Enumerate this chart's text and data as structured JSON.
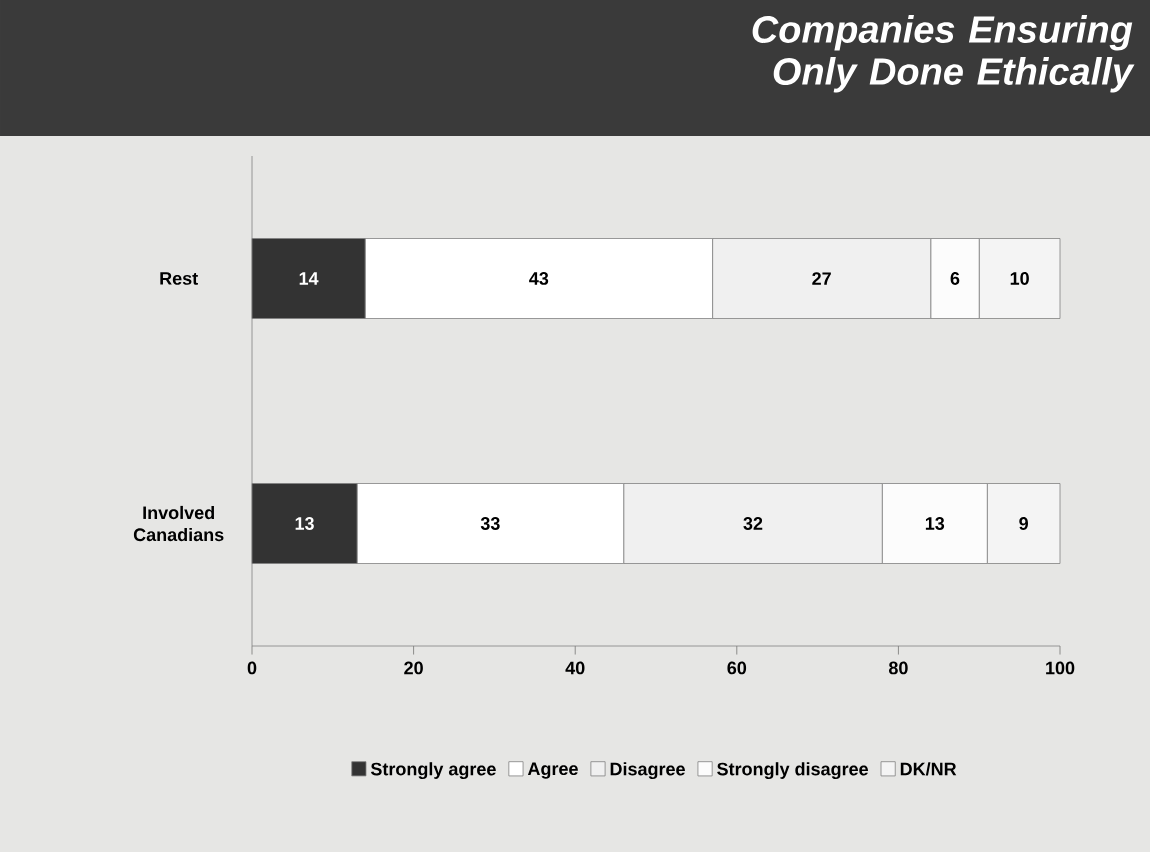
{
  "chart_data": {
    "type": "bar",
    "orientation": "horizontal",
    "stacked": true,
    "title": "Companies Ensuring Only Done Ethically",
    "categories": [
      "Rest",
      "Involved Canadians"
    ],
    "series": [
      {
        "name": "Strongly agree",
        "color": "#333333",
        "values": [
          14,
          13
        ]
      },
      {
        "name": "Agree",
        "color": "#ffffff",
        "values": [
          43,
          33
        ]
      },
      {
        "name": "Disagree",
        "color": "#f0f0f0",
        "values": [
          27,
          32
        ]
      },
      {
        "name": "Strongly disagree",
        "color": "#fcfcfc",
        "values": [
          6,
          13
        ]
      },
      {
        "name": "DK/NR",
        "color": "#f4f4f4",
        "values": [
          10,
          9
        ]
      }
    ],
    "xlim": [
      0,
      100
    ],
    "xticks": [
      0,
      20,
      40,
      60,
      80,
      100
    ],
    "data_labels": true,
    "legend": "bottom",
    "grid": false
  }
}
